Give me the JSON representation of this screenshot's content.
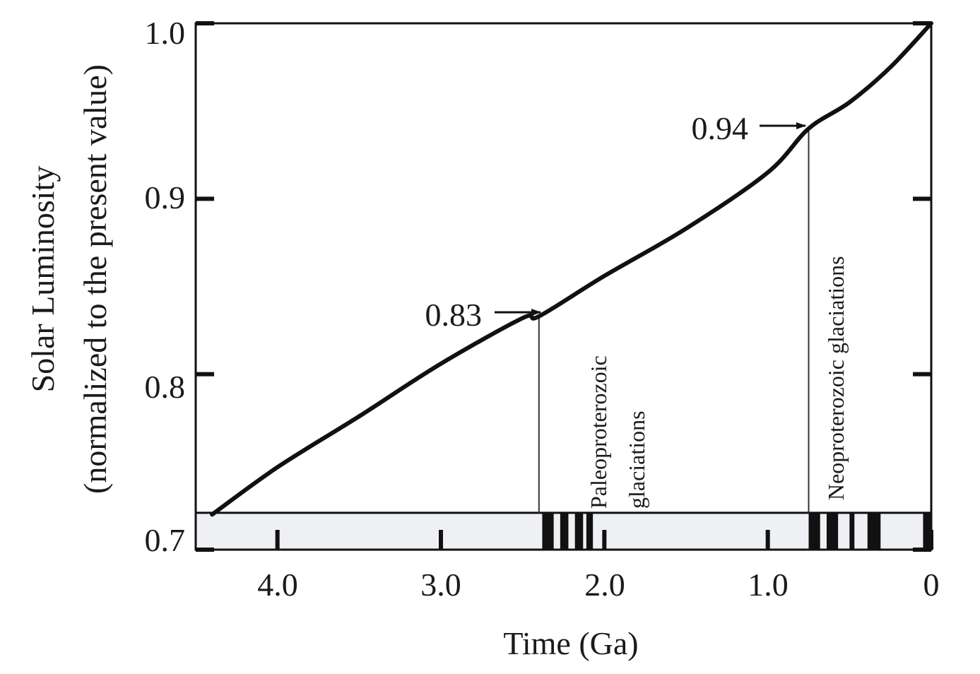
{
  "chart_data": {
    "type": "line",
    "title": "",
    "xlabel": "Time (Ga)",
    "ylabel": "Solar Luminosity",
    "ylabel_sub": "(normalized to the present value)",
    "xlim": [
      4.5,
      0
    ],
    "ylim": [
      0.7,
      1.0
    ],
    "x_reversed": true,
    "grid": false,
    "legend": "none",
    "x_ticks": [
      {
        "value": 4.0,
        "label": "4.0"
      },
      {
        "value": 3.0,
        "label": "3.0"
      },
      {
        "value": 2.0,
        "label": "2.0"
      },
      {
        "value": 1.0,
        "label": "1.0"
      },
      {
        "value": 0,
        "label": "0"
      }
    ],
    "y_ticks": [
      {
        "value": 1.0,
        "label": "1.0"
      },
      {
        "value": 0.9,
        "label": "0.9"
      },
      {
        "value": 0.8,
        "label": "0.8"
      },
      {
        "value": 0.7,
        "label": "0.7"
      }
    ],
    "series": [
      {
        "x": [
          4.4,
          4.0,
          3.5,
          3.0,
          2.5,
          2.4,
          2.0,
          1.5,
          1.0,
          0.75,
          0.5,
          0.25,
          0
        ],
        "y": [
          0.72,
          0.747,
          0.776,
          0.806,
          0.832,
          0.833,
          0.856,
          0.883,
          0.915,
          0.94,
          0.955,
          0.975,
          1.0
        ],
        "color": "#111111"
      }
    ],
    "annotations": [
      {
        "id": "paleo",
        "text": "0.83",
        "x": 2.4,
        "y": 0.833,
        "line_text_1": "Paleoproterozoic",
        "line_text_2": "glaciations"
      },
      {
        "id": "neo",
        "text": "0.94",
        "x": 0.75,
        "y": 0.94,
        "line_text_1": "Neoproterozoic glaciations"
      }
    ],
    "glaciation_band": {
      "y_range": [
        0.7,
        0.721
      ],
      "fill": "#eef0f3",
      "bars": [
        [
          2.38,
          2.31
        ],
        [
          2.27,
          2.22
        ],
        [
          2.18,
          2.13
        ],
        [
          2.11,
          2.07
        ],
        [
          0.75,
          0.68
        ],
        [
          0.64,
          0.57
        ],
        [
          0.5,
          0.47
        ],
        [
          0.39,
          0.31
        ],
        [
          0.05,
          0.0
        ]
      ]
    }
  }
}
